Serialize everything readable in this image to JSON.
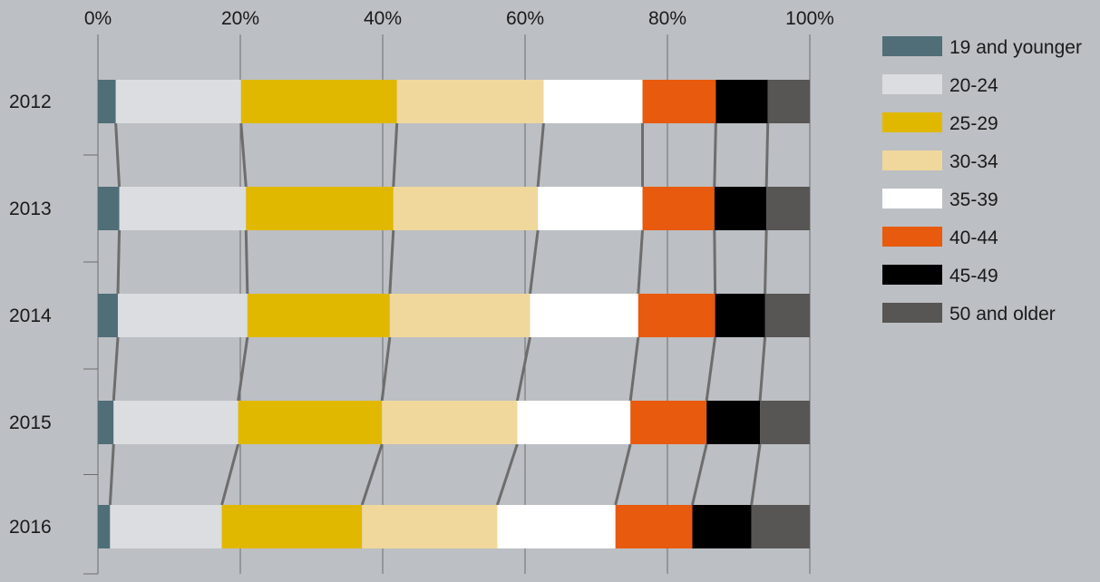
{
  "chart_data": {
    "type": "bar",
    "orientation": "horizontal",
    "stacked": true,
    "normalized": true,
    "categories": [
      "2012",
      "2013",
      "2014",
      "2015",
      "2016"
    ],
    "series": [
      {
        "name": "19 and younger",
        "color": "#4f6e78",
        "values": [
          2.5,
          3.0,
          2.8,
          2.2,
          1.7
        ]
      },
      {
        "name": "20-24",
        "color": "#dcdde0",
        "values": [
          17.6,
          17.8,
          18.2,
          17.5,
          15.7
        ]
      },
      {
        "name": "25-29",
        "color": "#e1b800",
        "values": [
          21.9,
          20.7,
          20.0,
          20.2,
          19.7
        ]
      },
      {
        "name": "30-34",
        "color": "#f0d89c",
        "values": [
          20.6,
          20.3,
          19.7,
          19.0,
          19.0
        ]
      },
      {
        "name": "35-39",
        "color": "#ffffff",
        "values": [
          13.9,
          14.7,
          15.2,
          15.9,
          16.6
        ]
      },
      {
        "name": "40-44",
        "color": "#e85a0e",
        "values": [
          10.3,
          10.1,
          10.8,
          10.7,
          10.8
        ]
      },
      {
        "name": "45-49",
        "color": "#000000",
        "values": [
          7.3,
          7.3,
          7.0,
          7.5,
          8.3
        ]
      },
      {
        "name": "50 and older",
        "color": "#575654",
        "values": [
          5.9,
          6.1,
          6.3,
          7.0,
          8.2
        ]
      }
    ],
    "xticks": [
      "0%",
      "20%",
      "40%",
      "60%",
      "80%",
      "100%"
    ],
    "xlim": [
      0,
      100
    ],
    "x_axis_position": "top",
    "grid": true,
    "connector_lines": true,
    "legend_position": "right",
    "connector_color": "#6d6d6d",
    "grid_color": "#6d6d6d"
  }
}
